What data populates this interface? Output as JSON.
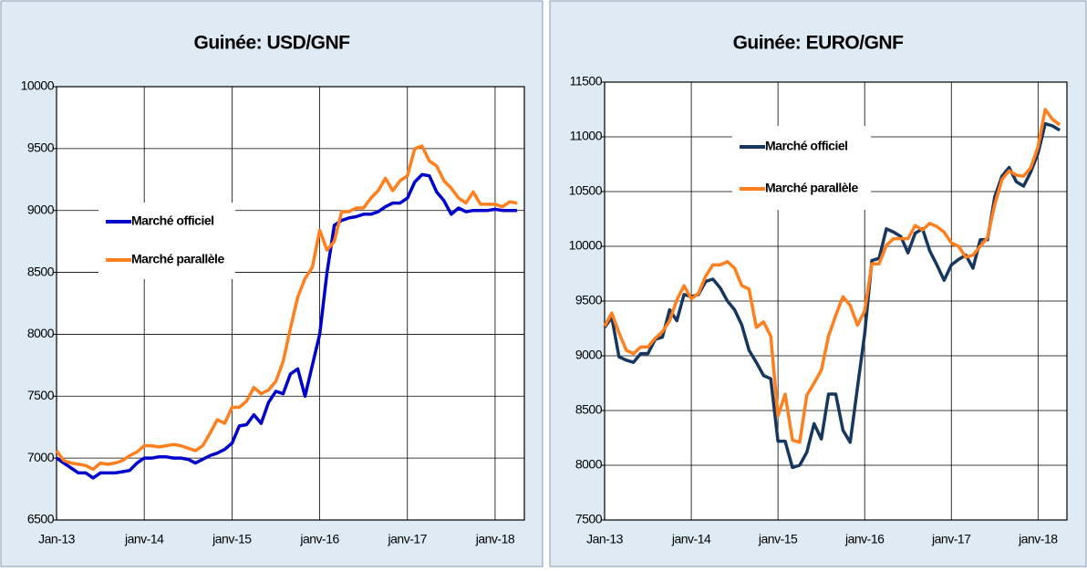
{
  "chart_data": [
    {
      "type": "line",
      "title": "Guinée: USD/GNF",
      "legend": "center-left",
      "grid": true,
      "categories": [
        "Jan-13",
        null,
        null,
        null,
        null,
        null,
        null,
        null,
        null,
        null,
        null,
        null,
        "janv-14",
        null,
        null,
        null,
        null,
        null,
        null,
        null,
        null,
        null,
        null,
        null,
        "janv-15",
        null,
        null,
        null,
        null,
        null,
        null,
        null,
        null,
        null,
        null,
        null,
        "janv-16",
        null,
        null,
        null,
        null,
        null,
        null,
        null,
        null,
        null,
        null,
        null,
        "janv-17",
        null,
        null,
        null,
        null,
        null,
        null,
        null,
        null,
        null,
        null,
        null,
        "janv-18",
        null,
        null,
        null
      ],
      "ylim": [
        6500,
        10000
      ],
      "yticks": [
        6500,
        7000,
        7500,
        8000,
        8500,
        9000,
        9500,
        10000
      ],
      "series": [
        {
          "name": "Marché officiel",
          "color": "#0000cc",
          "values": [
            7000,
            6960,
            6920,
            6880,
            6880,
            6840,
            6880,
            6880,
            6880,
            6890,
            6900,
            6960,
            7000,
            7000,
            7010,
            7010,
            7000,
            7000,
            6990,
            6960,
            6990,
            7020,
            7040,
            7070,
            7120,
            7260,
            7270,
            7350,
            7280,
            7450,
            7540,
            7520,
            7680,
            7720,
            7500,
            7750,
            8000,
            8500,
            8880,
            8920,
            8940,
            8950,
            8970,
            8970,
            8990,
            9030,
            9060,
            9060,
            9100,
            9230,
            9290,
            9280,
            9150,
            9080,
            8970,
            9020,
            8990,
            9000,
            9000,
            9000,
            9010,
            9000,
            9000,
            9000
          ]
        },
        {
          "name": "Marché parallèle",
          "color": "#ff7f1e",
          "values": [
            7060,
            6980,
            6960,
            6950,
            6940,
            6910,
            6960,
            6950,
            6960,
            6980,
            7020,
            7050,
            7100,
            7100,
            7090,
            7100,
            7110,
            7100,
            7080,
            7060,
            7100,
            7200,
            7310,
            7280,
            7410,
            7410,
            7460,
            7570,
            7520,
            7550,
            7620,
            7780,
            8050,
            8300,
            8450,
            8540,
            8840,
            8680,
            8750,
            8990,
            8990,
            9020,
            9020,
            9100,
            9160,
            9260,
            9160,
            9240,
            9280,
            9500,
            9520,
            9400,
            9360,
            9240,
            9180,
            9100,
            9060,
            9150,
            9050,
            9050,
            9050,
            9030,
            9070,
            9060
          ]
        }
      ]
    },
    {
      "type": "line",
      "title": "Guinée: EURO/GNF",
      "legend": "upper-left",
      "grid": true,
      "categories": [
        "Jan-13",
        null,
        null,
        null,
        null,
        null,
        null,
        null,
        null,
        null,
        null,
        null,
        "janv-14",
        null,
        null,
        null,
        null,
        null,
        null,
        null,
        null,
        null,
        null,
        null,
        "janv-15",
        null,
        null,
        null,
        null,
        null,
        null,
        null,
        null,
        null,
        null,
        null,
        "janv-16",
        null,
        null,
        null,
        null,
        null,
        null,
        null,
        null,
        null,
        null,
        null,
        "janv-17",
        null,
        null,
        null,
        null,
        null,
        null,
        null,
        null,
        null,
        null,
        null,
        "janv-18",
        null,
        null,
        null
      ],
      "ylim": [
        7500,
        11500
      ],
      "yticks": [
        7500,
        8000,
        8500,
        9000,
        9500,
        10000,
        10500,
        11000,
        11500
      ],
      "series": [
        {
          "name": "Marché officiel",
          "color": "#17375e",
          "values": [
            9260,
            9350,
            8990,
            8960,
            8940,
            9020,
            9020,
            9150,
            9170,
            9420,
            9320,
            9560,
            9540,
            9560,
            9680,
            9700,
            9620,
            9500,
            9420,
            9280,
            9050,
            8940,
            8820,
            8790,
            8220,
            8220,
            7980,
            8000,
            8120,
            8380,
            8240,
            8650,
            8650,
            8320,
            8210,
            8710,
            9200,
            9870,
            9890,
            10160,
            10130,
            10090,
            9940,
            10120,
            10160,
            9960,
            9830,
            9690,
            9830,
            9880,
            9920,
            9800,
            10060,
            10060,
            10450,
            10640,
            10720,
            10590,
            10550,
            10680,
            10850,
            11120,
            11100,
            11060
          ]
        },
        {
          "name": "Marché parallèle",
          "color": "#ff7f1e",
          "values": [
            9270,
            9390,
            9210,
            9050,
            9020,
            9080,
            9080,
            9160,
            9220,
            9320,
            9510,
            9640,
            9520,
            9570,
            9730,
            9830,
            9830,
            9860,
            9800,
            9640,
            9610,
            9260,
            9310,
            9180,
            8450,
            8650,
            8230,
            8210,
            8640,
            8750,
            8870,
            9180,
            9370,
            9540,
            9460,
            9280,
            9410,
            9840,
            9840,
            10010,
            10070,
            10070,
            10070,
            10190,
            10150,
            10210,
            10180,
            10130,
            10030,
            10000,
            9900,
            9920,
            10000,
            10080,
            10380,
            10610,
            10690,
            10650,
            10640,
            10720,
            10910,
            11250,
            11160,
            11110
          ]
        }
      ]
    }
  ]
}
